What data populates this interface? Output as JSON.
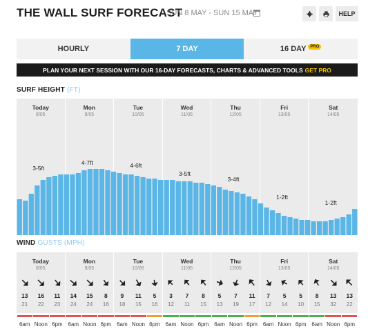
{
  "header": {
    "title": "THE WALL SURF FORECAST",
    "date_range": "SUN 8 MAY - SUN 15 MAY",
    "help_label": "HELP"
  },
  "tabs": [
    {
      "label": "HOURLY",
      "active": false
    },
    {
      "label": "7 DAY",
      "active": true
    },
    {
      "label": "16 DAY",
      "active": false,
      "badge": "PRO"
    }
  ],
  "banner": {
    "text": "PLAN YOUR NEXT SESSION WITH OUR 16-DAY FORECASTS, CHARTS & ADVANCED TOOLS",
    "cta": "GET PRO"
  },
  "surf": {
    "label": "SURF HEIGHT",
    "unit": "(FT)"
  },
  "wind": {
    "label": "WIND",
    "unit": "GUSTS (MPH)"
  },
  "days": [
    {
      "name": "Today",
      "date": "8/05",
      "surf_label": "3-5ft"
    },
    {
      "name": "Mon",
      "date": "9/05",
      "surf_label": "4-7ft"
    },
    {
      "name": "Tue",
      "date": "10/05",
      "surf_label": "4-6ft"
    },
    {
      "name": "Wed",
      "date": "11/05",
      "surf_label": "3-5ft"
    },
    {
      "name": "Thu",
      "date": "12/05",
      "surf_label": "3-4ft"
    },
    {
      "name": "Fri",
      "date": "13/05",
      "surf_label": "1-2ft"
    },
    {
      "name": "Sat",
      "date": "14/05",
      "surf_label": "1-2ft"
    }
  ],
  "chart_data": {
    "type": "bar",
    "surf_height_ft": [
      2.6,
      2.5,
      3.0,
      3.6,
      4.0,
      4.2,
      4.3,
      4.4,
      4.4,
      4.4,
      4.5,
      4.7,
      4.8,
      4.8,
      4.8,
      4.7,
      4.6,
      4.5,
      4.4,
      4.4,
      4.3,
      4.2,
      4.1,
      4.1,
      4.0,
      4.0,
      4.0,
      3.9,
      3.9,
      3.9,
      3.8,
      3.8,
      3.7,
      3.6,
      3.5,
      3.3,
      3.2,
      3.1,
      3.0,
      2.8,
      2.6,
      2.3,
      2.0,
      1.8,
      1.6,
      1.4,
      1.3,
      1.2,
      1.1,
      1.1,
      1.0,
      1.0,
      1.0,
      1.1,
      1.2,
      1.3,
      1.5,
      1.9
    ]
  },
  "wind_speed_mph": [
    13,
    16,
    11,
    14,
    15,
    8,
    9,
    11,
    5,
    3,
    7,
    8,
    5,
    7,
    11,
    7,
    5,
    5,
    8,
    13,
    13
  ],
  "wind_gust_mph": [
    21,
    22,
    23,
    24,
    24,
    16,
    18,
    15,
    16,
    12,
    11,
    15,
    13,
    19,
    17,
    12,
    14,
    10,
    15,
    32,
    22
  ],
  "wind_dir_deg": [
    135,
    135,
    140,
    130,
    135,
    145,
    135,
    150,
    170,
    315,
    320,
    320,
    110,
    200,
    320,
    150,
    300,
    320,
    330,
    135,
    315
  ],
  "ratings": [
    "#e05353",
    "#e05353",
    "#e05353",
    "#e05353",
    "#e05353",
    "#e05353",
    "#e05353",
    "#e05353",
    "#f0a030",
    "#4caf50",
    "#4caf50",
    "#4caf50",
    "#4caf50",
    "#4caf50",
    "#f0a030",
    "#4caf50",
    "#4caf50",
    "#4caf50",
    "#4caf50",
    "#e05353",
    "#e05353"
  ],
  "time_labels": [
    "6am",
    "Noon",
    "6pm",
    "6am",
    "Noon",
    "6pm",
    "6am",
    "Noon",
    "6pm",
    "6am",
    "Noon",
    "6pm",
    "6am",
    "Noon",
    "6pm",
    "6am",
    "Noon",
    "6pm",
    "6am",
    "Noon",
    "6pm"
  ]
}
